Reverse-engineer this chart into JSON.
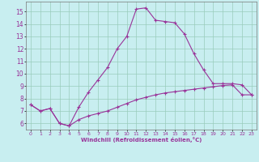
{
  "line1_x": [
    0,
    1,
    2,
    3,
    4,
    5,
    6,
    7,
    8,
    9,
    10,
    11,
    12,
    13,
    14,
    15,
    16,
    17,
    18,
    19,
    20,
    21,
    22,
    23
  ],
  "line1_y": [
    7.5,
    7.0,
    7.2,
    6.0,
    5.8,
    7.3,
    8.5,
    9.5,
    10.5,
    12.0,
    13.0,
    15.2,
    15.3,
    14.3,
    14.2,
    14.1,
    13.2,
    11.6,
    10.3,
    9.2,
    9.2,
    9.2,
    9.1,
    8.3
  ],
  "line2_x": [
    0,
    1,
    2,
    3,
    4,
    5,
    6,
    7,
    8,
    9,
    10,
    11,
    12,
    13,
    14,
    15,
    16,
    17,
    18,
    19,
    20,
    21,
    22,
    23
  ],
  "line2_y": [
    7.5,
    7.0,
    7.2,
    6.0,
    5.8,
    6.3,
    6.6,
    6.8,
    7.0,
    7.3,
    7.6,
    7.9,
    8.1,
    8.3,
    8.45,
    8.55,
    8.65,
    8.75,
    8.85,
    8.95,
    9.05,
    9.1,
    8.3,
    8.3
  ],
  "line_color": "#993399",
  "bg_color": "#c8eef0",
  "grid_color": "#99ccbb",
  "xlim": [
    -0.5,
    23.5
  ],
  "ylim": [
    5.5,
    15.8
  ],
  "xticks": [
    0,
    1,
    2,
    3,
    4,
    5,
    6,
    7,
    8,
    9,
    10,
    11,
    12,
    13,
    14,
    15,
    16,
    17,
    18,
    19,
    20,
    21,
    22,
    23
  ],
  "yticks": [
    6,
    7,
    8,
    9,
    10,
    11,
    12,
    13,
    14,
    15
  ],
  "xlabel": "Windchill (Refroidissement éolien,°C)",
  "marker": "+"
}
